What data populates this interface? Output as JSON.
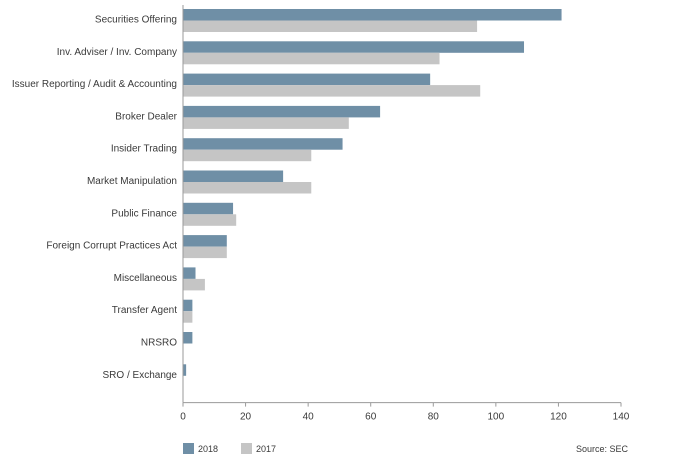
{
  "chart_data": {
    "type": "bar",
    "orientation": "horizontal",
    "categories": [
      "Securities Offering",
      "Inv. Adviser / Inv. Company",
      "Issuer Reporting / Audit & Accounting",
      "Broker Dealer",
      "Insider Trading",
      "Market Manipulation",
      "Public Finance",
      "Foreign Corrupt Practices Act",
      "Miscellaneous",
      "Transfer Agent",
      "NRSRO",
      "SRO / Exchange"
    ],
    "series": [
      {
        "name": "2018",
        "color": "#6f8fa6",
        "values": [
          121,
          109,
          79,
          63,
          51,
          32,
          16,
          14,
          4,
          3,
          3,
          1
        ]
      },
      {
        "name": "2017",
        "color": "#c5c5c5",
        "values": [
          94,
          82,
          95,
          53,
          41,
          41,
          17,
          14,
          7,
          3,
          0,
          0
        ]
      }
    ],
    "xlim": [
      0,
      140
    ],
    "xticks": [
      "0",
      "20",
      "40",
      "60",
      "80",
      "100",
      "120",
      "140"
    ],
    "grid": false,
    "legend_position": "bottom-left",
    "source": "Source: SEC"
  }
}
